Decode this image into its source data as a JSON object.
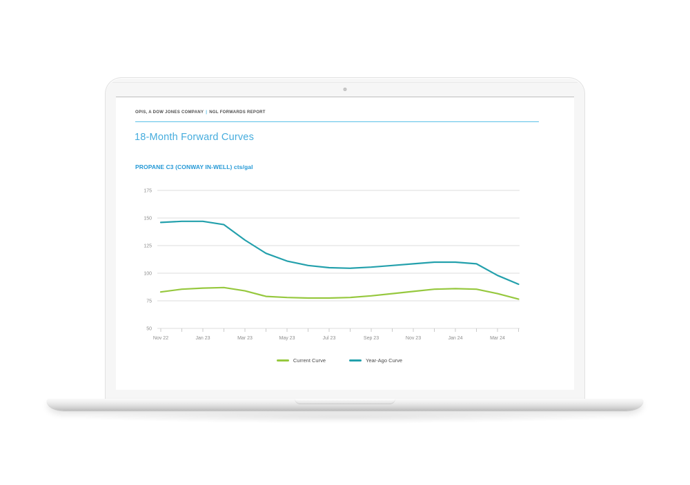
{
  "report": {
    "masthead": {
      "brand": "OPIS, A DOW JONES COMPANY",
      "separator": "|",
      "section": "NGL FORWARDS REPORT"
    },
    "title": "18-Month Forward Curves",
    "chart_heading": "PROPANE C3 (CONWAY IN-WELL) cts/gal"
  },
  "chart_data": {
    "type": "line",
    "title": "PROPANE C3 (CONWAY IN-WELL) cts/gal",
    "ylabel": "cts/gal",
    "xlabel": "",
    "x": [
      "Nov 22",
      "Dec 22",
      "Jan 23",
      "Feb 23",
      "Mar 23",
      "Apr 23",
      "May 23",
      "Jun 23",
      "Jul 23",
      "Aug 23",
      "Sep 23",
      "Oct 23",
      "Nov 23",
      "Dec 23",
      "Jan 24",
      "Feb 24",
      "Mar 24",
      "Apr 24"
    ],
    "x_label_every": 2,
    "x_tick_labels_shown": [
      "Nov 22",
      "Jan 23",
      "Mar 23",
      "May 23",
      "Jul 23",
      "Sep 23",
      "Nov 23",
      "Jan 24",
      "Mar 24"
    ],
    "y_ticks": [
      175,
      150,
      125,
      100,
      75,
      50
    ],
    "ylim": [
      50,
      175
    ],
    "grid": true,
    "legend_position": "bottom",
    "series": [
      {
        "name": "Current Curve",
        "color": "#96c83e",
        "values": [
          83,
          85.5,
          86.5,
          87,
          84,
          79,
          78,
          77.5,
          77.5,
          78,
          79.5,
          81.5,
          83.5,
          85.5,
          86,
          85.5,
          81.5,
          76.5
        ]
      },
      {
        "name": "Year-Ago Curve",
        "color": "#23a0ac",
        "values": [
          146,
          147,
          147,
          144,
          130,
          118,
          111,
          107,
          105,
          104.5,
          105.5,
          107,
          108.5,
          110,
          110,
          108.5,
          98,
          90
        ]
      }
    ],
    "colors": {
      "gridline": "#dcdcdc",
      "tick": "#c9c9c9",
      "axis_label": "#8c8c8c"
    }
  }
}
